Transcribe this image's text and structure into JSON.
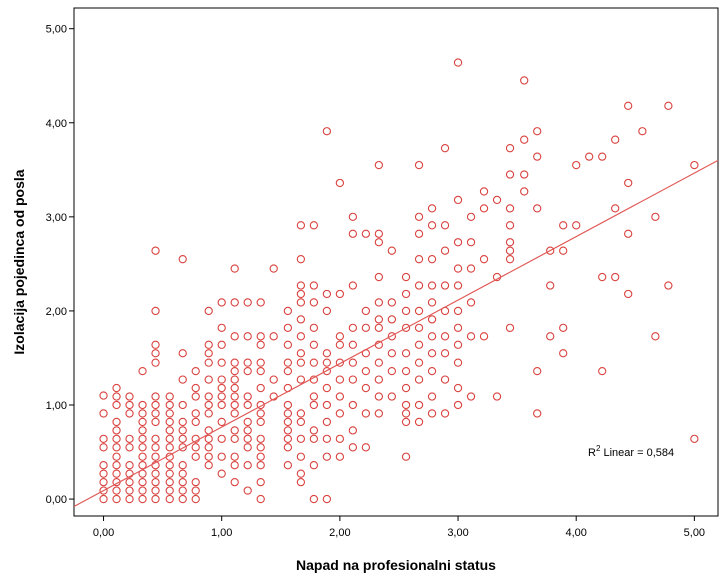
{
  "chart_data": {
    "type": "scatter",
    "xlabel": "Napad na profesionalni status",
    "ylabel": "Izolacija pojedinca od posla",
    "xlim": [
      -0.25,
      5.2
    ],
    "ylim": [
      -0.18,
      5.22
    ],
    "x_ticks": [
      {
        "value": 0,
        "label": "0,00"
      },
      {
        "value": 1,
        "label": "1,00"
      },
      {
        "value": 2,
        "label": "2,00"
      },
      {
        "value": 3,
        "label": "3,00"
      },
      {
        "value": 4,
        "label": "4,00"
      },
      {
        "value": 5,
        "label": "5,00"
      }
    ],
    "y_ticks": [
      {
        "value": 0,
        "label": "0,00"
      },
      {
        "value": 1,
        "label": "1,00"
      },
      {
        "value": 2,
        "label": "2,00"
      },
      {
        "value": 3,
        "label": "3,00"
      },
      {
        "value": 4,
        "label": "4,00"
      },
      {
        "value": 5,
        "label": "5,00"
      }
    ],
    "grid": false,
    "marker_color": "#d9423f",
    "fit_line": {
      "type": "linear",
      "intercept": 0.09,
      "slope": 0.675,
      "color": "#e05a57",
      "label_prefix": "R",
      "label_sup": "2",
      "label_suffix": " Linear = 0,584"
    },
    "points": [
      [
        0.0,
        0.0
      ],
      [
        0.0,
        0.09
      ],
      [
        0.0,
        0.18
      ],
      [
        0.0,
        0.27
      ],
      [
        0.0,
        0.36
      ],
      [
        0.0,
        0.55
      ],
      [
        0.0,
        0.64
      ],
      [
        0.0,
        0.91
      ],
      [
        0.0,
        1.1
      ],
      [
        0.11,
        0.0
      ],
      [
        0.11,
        0.09
      ],
      [
        0.11,
        0.18
      ],
      [
        0.11,
        0.27
      ],
      [
        0.11,
        0.36
      ],
      [
        0.11,
        0.45
      ],
      [
        0.11,
        0.55
      ],
      [
        0.11,
        0.64
      ],
      [
        0.11,
        0.73
      ],
      [
        0.11,
        0.82
      ],
      [
        0.11,
        1.0
      ],
      [
        0.11,
        1.09
      ],
      [
        0.11,
        1.18
      ],
      [
        0.22,
        0.0
      ],
      [
        0.22,
        0.09
      ],
      [
        0.22,
        0.18
      ],
      [
        0.22,
        0.27
      ],
      [
        0.22,
        0.36
      ],
      [
        0.22,
        0.55
      ],
      [
        0.22,
        0.64
      ],
      [
        0.22,
        0.91
      ],
      [
        0.22,
        1.0
      ],
      [
        0.22,
        1.09
      ],
      [
        0.33,
        0.0
      ],
      [
        0.33,
        0.09
      ],
      [
        0.33,
        0.18
      ],
      [
        0.33,
        0.27
      ],
      [
        0.33,
        0.36
      ],
      [
        0.33,
        0.45
      ],
      [
        0.33,
        0.55
      ],
      [
        0.33,
        0.64
      ],
      [
        0.33,
        0.73
      ],
      [
        0.33,
        0.82
      ],
      [
        0.33,
        0.91
      ],
      [
        0.33,
        1.0
      ],
      [
        0.33,
        1.36
      ],
      [
        0.44,
        0.0
      ],
      [
        0.44,
        0.09
      ],
      [
        0.44,
        0.18
      ],
      [
        0.44,
        0.27
      ],
      [
        0.44,
        0.36
      ],
      [
        0.44,
        0.45
      ],
      [
        0.44,
        0.55
      ],
      [
        0.44,
        0.64
      ],
      [
        0.44,
        0.82
      ],
      [
        0.44,
        0.91
      ],
      [
        0.44,
        1.0
      ],
      [
        0.44,
        1.09
      ],
      [
        0.44,
        1.45
      ],
      [
        0.44,
        1.55
      ],
      [
        0.44,
        1.64
      ],
      [
        0.44,
        2.0
      ],
      [
        0.44,
        2.64
      ],
      [
        0.56,
        0.0
      ],
      [
        0.56,
        0.09
      ],
      [
        0.56,
        0.18
      ],
      [
        0.56,
        0.27
      ],
      [
        0.56,
        0.36
      ],
      [
        0.56,
        0.45
      ],
      [
        0.56,
        0.55
      ],
      [
        0.56,
        0.64
      ],
      [
        0.56,
        0.73
      ],
      [
        0.56,
        0.82
      ],
      [
        0.56,
        0.91
      ],
      [
        0.56,
        1.0
      ],
      [
        0.56,
        1.09
      ],
      [
        0.67,
        0.0
      ],
      [
        0.67,
        0.09
      ],
      [
        0.67,
        0.18
      ],
      [
        0.67,
        0.27
      ],
      [
        0.67,
        0.36
      ],
      [
        0.67,
        0.55
      ],
      [
        0.67,
        0.64
      ],
      [
        0.67,
        0.73
      ],
      [
        0.67,
        0.82
      ],
      [
        0.67,
        1.0
      ],
      [
        0.67,
        1.27
      ],
      [
        0.67,
        1.55
      ],
      [
        0.67,
        2.55
      ],
      [
        0.78,
        0.0
      ],
      [
        0.78,
        0.09
      ],
      [
        0.78,
        0.18
      ],
      [
        0.78,
        0.45
      ],
      [
        0.78,
        0.55
      ],
      [
        0.78,
        0.64
      ],
      [
        0.78,
        0.82
      ],
      [
        0.78,
        0.91
      ],
      [
        0.78,
        1.09
      ],
      [
        0.78,
        1.18
      ],
      [
        0.78,
        1.36
      ],
      [
        0.89,
        0.36
      ],
      [
        0.89,
        0.45
      ],
      [
        0.89,
        0.55
      ],
      [
        0.89,
        0.64
      ],
      [
        0.89,
        0.73
      ],
      [
        0.89,
        0.91
      ],
      [
        0.89,
        1.0
      ],
      [
        0.89,
        1.09
      ],
      [
        0.89,
        1.27
      ],
      [
        0.89,
        1.45
      ],
      [
        0.89,
        1.55
      ],
      [
        0.89,
        1.64
      ],
      [
        0.89,
        2.0
      ],
      [
        1.0,
        0.27
      ],
      [
        1.0,
        0.45
      ],
      [
        1.0,
        0.64
      ],
      [
        1.0,
        0.82
      ],
      [
        1.0,
        1.0
      ],
      [
        1.0,
        1.09
      ],
      [
        1.0,
        1.18
      ],
      [
        1.0,
        1.27
      ],
      [
        1.0,
        1.45
      ],
      [
        1.0,
        1.64
      ],
      [
        1.0,
        1.82
      ],
      [
        1.0,
        2.09
      ],
      [
        1.11,
        0.18
      ],
      [
        1.11,
        0.36
      ],
      [
        1.11,
        0.45
      ],
      [
        1.11,
        0.64
      ],
      [
        1.11,
        0.73
      ],
      [
        1.11,
        0.91
      ],
      [
        1.11,
        1.0
      ],
      [
        1.11,
        1.09
      ],
      [
        1.11,
        1.18
      ],
      [
        1.11,
        1.27
      ],
      [
        1.11,
        1.36
      ],
      [
        1.11,
        1.45
      ],
      [
        1.11,
        1.73
      ],
      [
        1.11,
        2.09
      ],
      [
        1.11,
        2.45
      ],
      [
        1.22,
        0.09
      ],
      [
        1.22,
        0.36
      ],
      [
        1.22,
        0.55
      ],
      [
        1.22,
        0.64
      ],
      [
        1.22,
        0.73
      ],
      [
        1.22,
        0.82
      ],
      [
        1.22,
        1.0
      ],
      [
        1.22,
        1.09
      ],
      [
        1.22,
        1.36
      ],
      [
        1.22,
        1.45
      ],
      [
        1.22,
        1.73
      ],
      [
        1.22,
        2.09
      ],
      [
        1.33,
        0.0
      ],
      [
        1.33,
        0.18
      ],
      [
        1.33,
        0.36
      ],
      [
        1.33,
        0.45
      ],
      [
        1.33,
        0.55
      ],
      [
        1.33,
        0.64
      ],
      [
        1.33,
        0.82
      ],
      [
        1.33,
        0.91
      ],
      [
        1.33,
        1.0
      ],
      [
        1.33,
        1.18
      ],
      [
        1.33,
        1.36
      ],
      [
        1.33,
        1.45
      ],
      [
        1.33,
        1.64
      ],
      [
        1.33,
        1.73
      ],
      [
        1.33,
        2.09
      ],
      [
        1.44,
        1.09
      ],
      [
        1.44,
        1.27
      ],
      [
        1.44,
        1.73
      ],
      [
        1.44,
        2.45
      ],
      [
        1.56,
        0.36
      ],
      [
        1.56,
        0.55
      ],
      [
        1.56,
        0.64
      ],
      [
        1.56,
        0.73
      ],
      [
        1.56,
        0.82
      ],
      [
        1.56,
        0.91
      ],
      [
        1.56,
        1.0
      ],
      [
        1.56,
        1.18
      ],
      [
        1.56,
        1.36
      ],
      [
        1.56,
        1.45
      ],
      [
        1.56,
        1.64
      ],
      [
        1.56,
        1.82
      ],
      [
        1.56,
        2.0
      ],
      [
        1.67,
        0.18
      ],
      [
        1.67,
        0.27
      ],
      [
        1.67,
        0.45
      ],
      [
        1.67,
        0.64
      ],
      [
        1.67,
        0.82
      ],
      [
        1.67,
        0.91
      ],
      [
        1.67,
        1.27
      ],
      [
        1.67,
        1.45
      ],
      [
        1.67,
        1.55
      ],
      [
        1.67,
        1.73
      ],
      [
        1.67,
        1.91
      ],
      [
        1.67,
        2.09
      ],
      [
        1.67,
        2.18
      ],
      [
        1.67,
        2.27
      ],
      [
        1.67,
        2.55
      ],
      [
        1.67,
        2.91
      ],
      [
        1.78,
        0.0
      ],
      [
        1.78,
        0.36
      ],
      [
        1.78,
        0.64
      ],
      [
        1.78,
        0.73
      ],
      [
        1.78,
        1.0
      ],
      [
        1.78,
        1.09
      ],
      [
        1.78,
        1.27
      ],
      [
        1.78,
        1.45
      ],
      [
        1.78,
        1.64
      ],
      [
        1.78,
        1.82
      ],
      [
        1.78,
        2.09
      ],
      [
        1.78,
        2.27
      ],
      [
        1.78,
        2.91
      ],
      [
        1.89,
        0.0
      ],
      [
        1.89,
        0.45
      ],
      [
        1.89,
        0.64
      ],
      [
        1.89,
        0.82
      ],
      [
        1.89,
        1.0
      ],
      [
        1.89,
        1.18
      ],
      [
        1.89,
        1.36
      ],
      [
        1.89,
        1.45
      ],
      [
        1.89,
        1.55
      ],
      [
        1.89,
        2.0
      ],
      [
        1.89,
        2.18
      ],
      [
        1.89,
        3.91
      ],
      [
        2.0,
        0.45
      ],
      [
        2.0,
        0.64
      ],
      [
        2.0,
        0.91
      ],
      [
        2.0,
        1.09
      ],
      [
        2.0,
        1.27
      ],
      [
        2.0,
        1.45
      ],
      [
        2.0,
        1.64
      ],
      [
        2.0,
        1.73
      ],
      [
        2.0,
        2.18
      ],
      [
        2.0,
        3.36
      ],
      [
        2.11,
        0.55
      ],
      [
        2.11,
        0.73
      ],
      [
        2.11,
        1.0
      ],
      [
        2.11,
        1.27
      ],
      [
        2.11,
        1.45
      ],
      [
        2.11,
        1.64
      ],
      [
        2.11,
        1.82
      ],
      [
        2.11,
        2.27
      ],
      [
        2.11,
        2.82
      ],
      [
        2.11,
        3.0
      ],
      [
        2.22,
        0.55
      ],
      [
        2.22,
        0.91
      ],
      [
        2.22,
        1.18
      ],
      [
        2.22,
        1.36
      ],
      [
        2.22,
        1.55
      ],
      [
        2.22,
        1.82
      ],
      [
        2.22,
        2.0
      ],
      [
        2.22,
        2.82
      ],
      [
        2.33,
        0.91
      ],
      [
        2.33,
        1.09
      ],
      [
        2.33,
        1.27
      ],
      [
        2.33,
        1.45
      ],
      [
        2.33,
        1.64
      ],
      [
        2.33,
        1.82
      ],
      [
        2.33,
        1.91
      ],
      [
        2.33,
        2.09
      ],
      [
        2.33,
        2.36
      ],
      [
        2.33,
        2.73
      ],
      [
        2.33,
        2.82
      ],
      [
        2.33,
        3.55
      ],
      [
        2.44,
        1.09
      ],
      [
        2.44,
        1.36
      ],
      [
        2.44,
        1.55
      ],
      [
        2.44,
        1.73
      ],
      [
        2.44,
        1.91
      ],
      [
        2.44,
        2.09
      ],
      [
        2.44,
        2.64
      ],
      [
        2.56,
        0.45
      ],
      [
        2.56,
        0.82
      ],
      [
        2.56,
        0.91
      ],
      [
        2.56,
        1.0
      ],
      [
        2.56,
        1.18
      ],
      [
        2.56,
        1.36
      ],
      [
        2.56,
        1.55
      ],
      [
        2.56,
        1.82
      ],
      [
        2.56,
        2.0
      ],
      [
        2.56,
        2.18
      ],
      [
        2.56,
        2.36
      ],
      [
        2.67,
        0.82
      ],
      [
        2.67,
        1.0
      ],
      [
        2.67,
        1.27
      ],
      [
        2.67,
        1.45
      ],
      [
        2.67,
        1.64
      ],
      [
        2.67,
        1.82
      ],
      [
        2.67,
        2.0
      ],
      [
        2.67,
        2.27
      ],
      [
        2.67,
        2.55
      ],
      [
        2.67,
        2.82
      ],
      [
        2.67,
        3.0
      ],
      [
        2.67,
        3.55
      ],
      [
        2.78,
        0.91
      ],
      [
        2.78,
        1.09
      ],
      [
        2.78,
        1.36
      ],
      [
        2.78,
        1.55
      ],
      [
        2.78,
        1.73
      ],
      [
        2.78,
        1.91
      ],
      [
        2.78,
        2.09
      ],
      [
        2.78,
        2.27
      ],
      [
        2.78,
        2.55
      ],
      [
        2.78,
        2.91
      ],
      [
        2.78,
        3.09
      ],
      [
        2.89,
        0.91
      ],
      [
        2.89,
        1.27
      ],
      [
        2.89,
        1.55
      ],
      [
        2.89,
        1.73
      ],
      [
        2.89,
        2.0
      ],
      [
        2.89,
        2.27
      ],
      [
        2.89,
        2.64
      ],
      [
        2.89,
        2.91
      ],
      [
        2.89,
        3.73
      ],
      [
        3.0,
        1.0
      ],
      [
        3.0,
        1.18
      ],
      [
        3.0,
        1.45
      ],
      [
        3.0,
        1.64
      ],
      [
        3.0,
        1.82
      ],
      [
        3.0,
        2.0
      ],
      [
        3.0,
        2.27
      ],
      [
        3.0,
        2.45
      ],
      [
        3.0,
        2.73
      ],
      [
        3.0,
        3.18
      ],
      [
        3.0,
        4.64
      ],
      [
        3.11,
        1.09
      ],
      [
        3.11,
        1.73
      ],
      [
        3.11,
        2.09
      ],
      [
        3.11,
        2.45
      ],
      [
        3.11,
        2.73
      ],
      [
        3.11,
        3.0
      ],
      [
        3.22,
        1.73
      ],
      [
        3.22,
        2.55
      ],
      [
        3.22,
        3.09
      ],
      [
        3.22,
        3.27
      ],
      [
        3.33,
        1.09
      ],
      [
        3.33,
        2.36
      ],
      [
        3.33,
        3.18
      ],
      [
        3.44,
        1.82
      ],
      [
        3.44,
        2.55
      ],
      [
        3.44,
        2.64
      ],
      [
        3.44,
        2.73
      ],
      [
        3.44,
        2.91
      ],
      [
        3.44,
        3.09
      ],
      [
        3.44,
        3.45
      ],
      [
        3.44,
        3.73
      ],
      [
        3.56,
        3.27
      ],
      [
        3.56,
        3.45
      ],
      [
        3.56,
        3.82
      ],
      [
        3.56,
        4.45
      ],
      [
        3.67,
        0.91
      ],
      [
        3.67,
        1.36
      ],
      [
        3.67,
        3.09
      ],
      [
        3.67,
        3.64
      ],
      [
        3.67,
        3.91
      ],
      [
        3.78,
        1.73
      ],
      [
        3.78,
        2.27
      ],
      [
        3.78,
        2.64
      ],
      [
        3.89,
        1.55
      ],
      [
        3.89,
        1.82
      ],
      [
        3.89,
        2.64
      ],
      [
        3.89,
        2.91
      ],
      [
        4.0,
        2.91
      ],
      [
        4.0,
        3.55
      ],
      [
        4.11,
        3.64
      ],
      [
        4.22,
        1.36
      ],
      [
        4.22,
        2.36
      ],
      [
        4.22,
        3.64
      ],
      [
        4.33,
        2.36
      ],
      [
        4.33,
        3.09
      ],
      [
        4.33,
        3.82
      ],
      [
        4.44,
        2.18
      ],
      [
        4.44,
        2.82
      ],
      [
        4.44,
        3.36
      ],
      [
        4.44,
        4.18
      ],
      [
        4.56,
        3.91
      ],
      [
        4.67,
        1.73
      ],
      [
        4.67,
        3.0
      ],
      [
        4.78,
        2.27
      ],
      [
        4.78,
        4.18
      ],
      [
        5.0,
        0.64
      ],
      [
        5.0,
        3.55
      ]
    ]
  }
}
